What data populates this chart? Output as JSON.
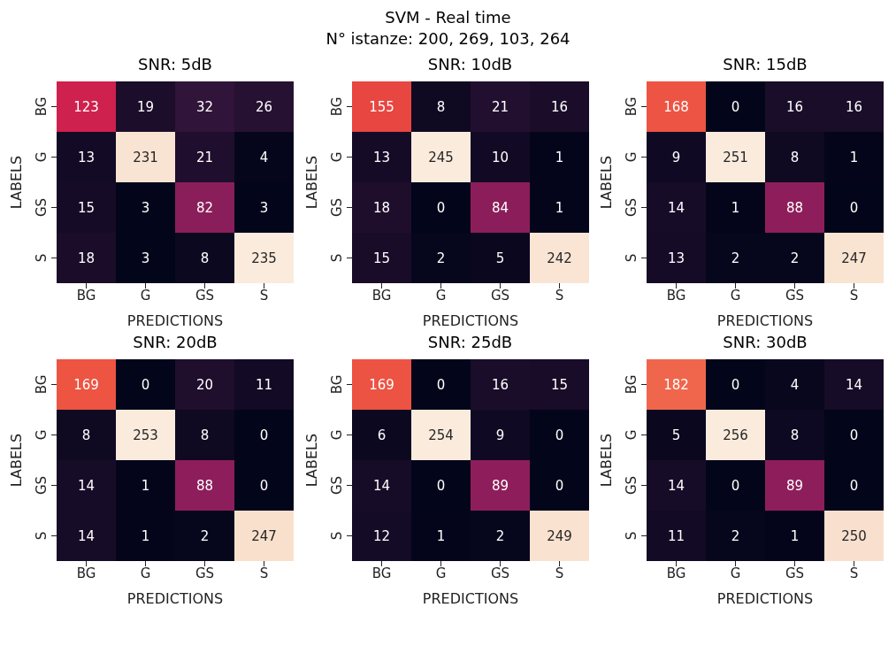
{
  "chart_data": [
    {
      "type": "other",
      "title": "SVM - Real time",
      "subtitle": "N° istanze: 200, 269, 103, 264"
    },
    {
      "type": "heatmap",
      "title": "SNR: 5dB",
      "xlabel": "PREDICTIONS",
      "ylabel": "LABELS",
      "categories": [
        "BG",
        "G",
        "GS",
        "S"
      ],
      "y_categories": [
        "BG",
        "G",
        "GS",
        "S"
      ],
      "data_labels": true,
      "cells": [
        [
          123,
          19,
          32,
          26
        ],
        [
          13,
          231,
          21,
          4
        ],
        [
          15,
          3,
          82,
          3
        ],
        [
          18,
          3,
          8,
          235
        ]
      ]
    },
    {
      "type": "heatmap",
      "title": "SNR: 10dB",
      "xlabel": "PREDICTIONS",
      "ylabel": "LABELS",
      "categories": [
        "BG",
        "G",
        "GS",
        "S"
      ],
      "y_categories": [
        "BG",
        "G",
        "GS",
        "S"
      ],
      "data_labels": true,
      "cells": [
        [
          155,
          8,
          21,
          16
        ],
        [
          13,
          245,
          10,
          1
        ],
        [
          18,
          0,
          84,
          1
        ],
        [
          15,
          2,
          5,
          242
        ]
      ]
    },
    {
      "type": "heatmap",
      "title": "SNR: 15dB",
      "xlabel": "PREDICTIONS",
      "ylabel": "LABELS",
      "categories": [
        "BG",
        "G",
        "GS",
        "S"
      ],
      "y_categories": [
        "BG",
        "G",
        "GS",
        "S"
      ],
      "data_labels": true,
      "cells": [
        [
          168,
          0,
          16,
          16
        ],
        [
          9,
          251,
          8,
          1
        ],
        [
          14,
          1,
          88,
          0
        ],
        [
          13,
          2,
          2,
          247
        ]
      ]
    },
    {
      "type": "heatmap",
      "title": "SNR: 20dB",
      "xlabel": "PREDICTIONS",
      "ylabel": "LABELS",
      "categories": [
        "BG",
        "G",
        "GS",
        "S"
      ],
      "y_categories": [
        "BG",
        "G",
        "GS",
        "S"
      ],
      "data_labels": true,
      "cells": [
        [
          169,
          0,
          20,
          11
        ],
        [
          8,
          253,
          8,
          0
        ],
        [
          14,
          1,
          88,
          0
        ],
        [
          14,
          1,
          2,
          247
        ]
      ]
    },
    {
      "type": "heatmap",
      "title": "SNR: 25dB",
      "xlabel": "PREDICTIONS",
      "ylabel": "LABELS",
      "categories": [
        "BG",
        "G",
        "GS",
        "S"
      ],
      "y_categories": [
        "BG",
        "G",
        "GS",
        "S"
      ],
      "data_labels": true,
      "cells": [
        [
          169,
          0,
          16,
          15
        ],
        [
          6,
          254,
          9,
          0
        ],
        [
          14,
          0,
          89,
          0
        ],
        [
          12,
          1,
          2,
          249
        ]
      ]
    },
    {
      "type": "heatmap",
      "title": "SNR: 30dB",
      "xlabel": "PREDICTIONS",
      "ylabel": "LABELS",
      "categories": [
        "BG",
        "G",
        "GS",
        "S"
      ],
      "y_categories": [
        "BG",
        "G",
        "GS",
        "S"
      ],
      "data_labels": true,
      "cells": [
        [
          182,
          0,
          4,
          14
        ],
        [
          5,
          256,
          8,
          0
        ],
        [
          14,
          0,
          89,
          0
        ],
        [
          11,
          2,
          1,
          250
        ]
      ]
    }
  ]
}
